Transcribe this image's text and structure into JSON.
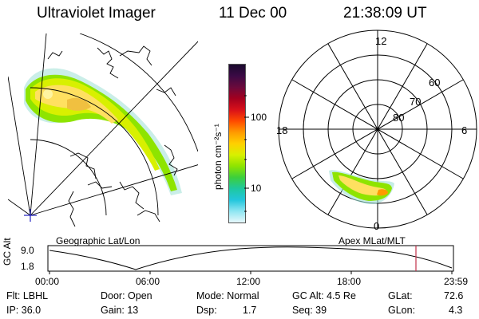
{
  "header": {
    "instrument": "Ultraviolet Imager",
    "date": "11 Dec 00",
    "time": "21:38:09 UT"
  },
  "colorbar": {
    "unit_label": "photon cm⁻²s⁻¹",
    "ticks": [
      "100",
      "10"
    ],
    "colors_top_to_bottom": [
      "#1a0a2e",
      "#3b0a45",
      "#6a0a3c",
      "#a3001f",
      "#d8101a",
      "#ff4a00",
      "#ff9a00",
      "#ffd000",
      "#d8f000",
      "#8ee400",
      "#3ccf3c",
      "#1ec8a0",
      "#22c6dc",
      "#8fe6f2",
      "#e8f8fb"
    ]
  },
  "panels": {
    "geo_label": "Geographic Lat/Lon",
    "mlt_label": "Apex MLat/MLT"
  },
  "polar": {
    "mlt_labels": {
      "top": "12",
      "left": "18",
      "right": "6",
      "bottom": "0"
    },
    "lat_labels": [
      "60",
      "70",
      "80"
    ]
  },
  "timeline": {
    "axis_label": "GC Alt",
    "y_ticks": [
      "9.0",
      "1.8"
    ],
    "x_ticks": [
      "00:00",
      "06:00",
      "12:00",
      "18:00",
      "23:59"
    ],
    "marker_color": "#c0304a"
  },
  "status": {
    "flt": "Flt: LBHL",
    "ip": "IP: 36.0",
    "door": "Door: Open",
    "gain": "Gain: 13",
    "mode": "Mode: Normal",
    "dsp_label": "Dsp:",
    "dsp_value": "1.7",
    "gc_alt": "GC Alt: 4.5 Re",
    "seq": "Seq: 39",
    "glat_label": "GLat:",
    "glat_value": "72.6",
    "glon_label": "GLon:",
    "glon_value": "4.3"
  }
}
